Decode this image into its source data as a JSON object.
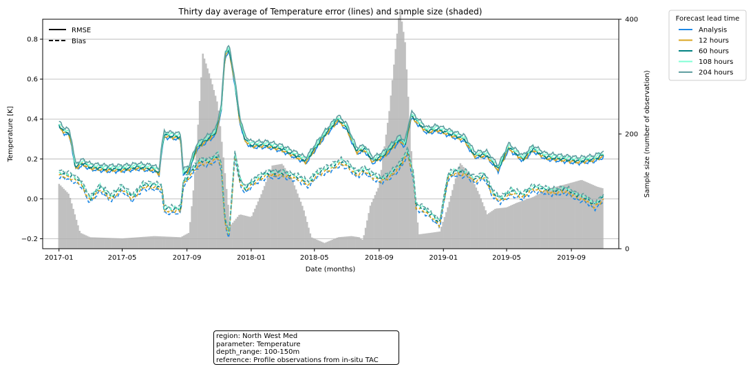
{
  "chart_data": {
    "type": "line",
    "title": "Thirty day average of Temperature error (lines) and sample size (shaded)",
    "xlabel": "Date (months)",
    "ylabel": "Temperature [K]",
    "y2label": "Sample size (number of observation)",
    "x_range": [
      "2016-12-01",
      "2019-11-30"
    ],
    "ylim": [
      -0.25,
      0.9
    ],
    "y2lim": [
      0,
      400
    ],
    "x_ticks": [
      "2017-01",
      "2017-05",
      "2017-09",
      "2018-01",
      "2018-05",
      "2018-09",
      "2019-01",
      "2019-05",
      "2019-09"
    ],
    "y_ticks": [
      -0.2,
      0.0,
      0.2,
      0.4,
      0.6,
      0.8
    ],
    "y_tick_labels": [
      "−0.2",
      "0.0",
      "0.2",
      "0.4",
      "0.6",
      "0.8"
    ],
    "y2_ticks": [
      0,
      200,
      400
    ],
    "grid": "horizontal",
    "style_legend": [
      {
        "label": "RMSE",
        "dash": "solid"
      },
      {
        "label": "Bias",
        "dash": "dashed"
      }
    ],
    "series_legend_title": "Forecast lead time",
    "series": [
      {
        "name": "Analysis",
        "color": "#1e88e5"
      },
      {
        "name": "12 hours",
        "color": "#daa520"
      },
      {
        "name": "60 hours",
        "color": "#008080"
      },
      {
        "name": "108 hours",
        "color": "#7fffd4"
      },
      {
        "name": "204 hours",
        "color": "#5f9ea0"
      }
    ],
    "sample_size": {
      "color": "#c0c0c0",
      "points": [
        [
          "2017-01-01",
          113
        ],
        [
          "2017-01-20",
          95
        ],
        [
          "2017-02-10",
          28
        ],
        [
          "2017-03-01",
          20
        ],
        [
          "2017-05-01",
          18
        ],
        [
          "2017-07-01",
          22
        ],
        [
          "2017-08-20",
          20
        ],
        [
          "2017-09-05",
          28
        ],
        [
          "2017-09-15",
          120
        ],
        [
          "2017-10-01",
          340
        ],
        [
          "2017-10-15",
          300
        ],
        [
          "2017-10-30",
          250
        ],
        [
          "2017-11-10",
          150
        ],
        [
          "2017-11-22",
          40
        ],
        [
          "2017-12-10",
          60
        ],
        [
          "2018-01-01",
          55
        ],
        [
          "2018-01-20",
          95
        ],
        [
          "2018-02-10",
          145
        ],
        [
          "2018-03-01",
          148
        ],
        [
          "2018-03-20",
          120
        ],
        [
          "2018-04-10",
          70
        ],
        [
          "2018-04-25",
          20
        ],
        [
          "2018-05-20",
          10
        ],
        [
          "2018-06-15",
          20
        ],
        [
          "2018-07-10",
          22
        ],
        [
          "2018-07-25",
          20
        ],
        [
          "2018-08-01",
          15
        ],
        [
          "2018-08-15",
          75
        ],
        [
          "2018-09-01",
          110
        ],
        [
          "2018-09-20",
          240
        ],
        [
          "2018-10-10",
          420
        ],
        [
          "2018-10-20",
          360
        ],
        [
          "2018-11-01",
          170
        ],
        [
          "2018-11-15",
          25
        ],
        [
          "2018-12-10",
          28
        ],
        [
          "2018-12-25",
          30
        ],
        [
          "2019-01-10",
          75
        ],
        [
          "2019-02-01",
          150
        ],
        [
          "2019-02-20",
          130
        ],
        [
          "2019-03-10",
          95
        ],
        [
          "2019-03-25",
          60
        ],
        [
          "2019-04-10",
          70
        ],
        [
          "2019-05-01",
          72
        ],
        [
          "2019-05-20",
          80
        ],
        [
          "2019-06-20",
          90
        ],
        [
          "2019-07-20",
          105
        ],
        [
          "2019-08-20",
          112
        ],
        [
          "2019-09-20",
          120
        ],
        [
          "2019-10-20",
          108
        ],
        [
          "2019-11-01",
          105
        ]
      ]
    },
    "rmse": [
      [
        "2017-01-01",
        0.37
      ],
      [
        "2017-01-10",
        0.34
      ],
      [
        "2017-01-20",
        0.33
      ],
      [
        "2017-01-25",
        0.28
      ],
      [
        "2017-02-01",
        0.16
      ],
      [
        "2017-02-15",
        0.18
      ],
      [
        "2017-03-01",
        0.16
      ],
      [
        "2017-04-01",
        0.15
      ],
      [
        "2017-05-01",
        0.15
      ],
      [
        "2017-06-01",
        0.16
      ],
      [
        "2017-07-01",
        0.15
      ],
      [
        "2017-07-10",
        0.13
      ],
      [
        "2017-07-15",
        0.25
      ],
      [
        "2017-07-20",
        0.32
      ],
      [
        "2017-08-20",
        0.31
      ],
      [
        "2017-08-25",
        0.13
      ],
      [
        "2017-09-05",
        0.15
      ],
      [
        "2017-09-20",
        0.26
      ],
      [
        "2017-10-10",
        0.3
      ],
      [
        "2017-10-25",
        0.33
      ],
      [
        "2017-11-05",
        0.45
      ],
      [
        "2017-11-12",
        0.72
      ],
      [
        "2017-11-20",
        0.75
      ],
      [
        "2017-11-30",
        0.6
      ],
      [
        "2017-12-10",
        0.4
      ],
      [
        "2017-12-20",
        0.3
      ],
      [
        "2018-01-01",
        0.27
      ],
      [
        "2018-02-01",
        0.27
      ],
      [
        "2018-03-01",
        0.25
      ],
      [
        "2018-04-01",
        0.21
      ],
      [
        "2018-04-15",
        0.19
      ],
      [
        "2018-05-01",
        0.25
      ],
      [
        "2018-05-20",
        0.32
      ],
      [
        "2018-06-15",
        0.4
      ],
      [
        "2018-07-01",
        0.36
      ],
      [
        "2018-07-20",
        0.24
      ],
      [
        "2018-08-05",
        0.25
      ],
      [
        "2018-08-20",
        0.19
      ],
      [
        "2018-09-10",
        0.22
      ],
      [
        "2018-09-25",
        0.26
      ],
      [
        "2018-10-10",
        0.3
      ],
      [
        "2018-10-20",
        0.27
      ],
      [
        "2018-11-01",
        0.42
      ],
      [
        "2018-11-15",
        0.38
      ],
      [
        "2018-12-01",
        0.34
      ],
      [
        "2018-12-20",
        0.35
      ],
      [
        "2019-01-10",
        0.33
      ],
      [
        "2019-02-10",
        0.3
      ],
      [
        "2019-03-01",
        0.22
      ],
      [
        "2019-03-25",
        0.22
      ],
      [
        "2019-04-15",
        0.15
      ],
      [
        "2019-05-05",
        0.26
      ],
      [
        "2019-06-01",
        0.2
      ],
      [
        "2019-06-20",
        0.25
      ],
      [
        "2019-07-15",
        0.21
      ],
      [
        "2019-08-15",
        0.2
      ],
      [
        "2019-09-15",
        0.19
      ],
      [
        "2019-10-15",
        0.2
      ],
      [
        "2019-11-01",
        0.22
      ]
    ],
    "bias": [
      [
        "2017-01-01",
        0.13
      ],
      [
        "2017-01-20",
        0.12
      ],
      [
        "2017-02-10",
        0.09
      ],
      [
        "2017-03-01",
        0.0
      ],
      [
        "2017-03-20",
        0.06
      ],
      [
        "2017-04-10",
        0.01
      ],
      [
        "2017-05-01",
        0.06
      ],
      [
        "2017-05-20",
        0.01
      ],
      [
        "2017-06-10",
        0.07
      ],
      [
        "2017-07-01",
        0.07
      ],
      [
        "2017-07-15",
        0.06
      ],
      [
        "2017-07-20",
        -0.05
      ],
      [
        "2017-08-20",
        -0.05
      ],
      [
        "2017-08-25",
        0.08
      ],
      [
        "2017-09-10",
        0.14
      ],
      [
        "2017-09-25",
        0.19
      ],
      [
        "2017-10-15",
        0.19
      ],
      [
        "2017-10-30",
        0.22
      ],
      [
        "2017-11-05",
        0.17
      ],
      [
        "2017-11-12",
        -0.1
      ],
      [
        "2017-11-20",
        -0.18
      ],
      [
        "2017-12-01",
        0.23
      ],
      [
        "2017-12-10",
        0.1
      ],
      [
        "2017-12-20",
        0.05
      ],
      [
        "2018-01-10",
        0.1
      ],
      [
        "2018-02-01",
        0.13
      ],
      [
        "2018-03-01",
        0.13
      ],
      [
        "2018-04-01",
        0.11
      ],
      [
        "2018-04-20",
        0.08
      ],
      [
        "2018-05-05",
        0.13
      ],
      [
        "2018-06-01",
        0.16
      ],
      [
        "2018-06-20",
        0.19
      ],
      [
        "2018-07-05",
        0.17
      ],
      [
        "2018-07-20",
        0.13
      ],
      [
        "2018-08-05",
        0.15
      ],
      [
        "2018-08-20",
        0.12
      ],
      [
        "2018-09-05",
        0.1
      ],
      [
        "2018-09-20",
        0.12
      ],
      [
        "2018-10-10",
        0.17
      ],
      [
        "2018-10-25",
        0.24
      ],
      [
        "2018-11-05",
        0.12
      ],
      [
        "2018-11-10",
        -0.03
      ],
      [
        "2018-11-25",
        -0.05
      ],
      [
        "2018-12-10",
        -0.08
      ],
      [
        "2018-12-25",
        -0.12
      ],
      [
        "2019-01-10",
        0.12
      ],
      [
        "2019-01-25",
        0.14
      ],
      [
        "2019-02-15",
        0.13
      ],
      [
        "2019-03-01",
        0.1
      ],
      [
        "2019-03-20",
        0.12
      ],
      [
        "2019-04-05",
        0.03
      ],
      [
        "2019-04-20",
        0.0
      ],
      [
        "2019-05-10",
        0.04
      ],
      [
        "2019-06-01",
        0.02
      ],
      [
        "2019-06-20",
        0.06
      ],
      [
        "2019-07-10",
        0.05
      ],
      [
        "2019-08-01",
        0.04
      ],
      [
        "2019-08-20",
        0.05
      ],
      [
        "2019-09-10",
        0.02
      ],
      [
        "2019-10-01",
        0.0
      ],
      [
        "2019-10-15",
        -0.03
      ],
      [
        "2019-11-01",
        0.01
      ]
    ],
    "series_offsets": {
      "rmse": [
        -0.012,
        -0.006,
        0.0,
        0.01,
        0.018
      ],
      "bias": [
        -0.022,
        -0.012,
        0.0,
        0.006,
        0.012
      ]
    }
  },
  "info_box": [
    "region: North West Med",
    "parameter: Temperature",
    "depth_range: 100-150m",
    "reference: Profile observations from in-situ TAC"
  ]
}
